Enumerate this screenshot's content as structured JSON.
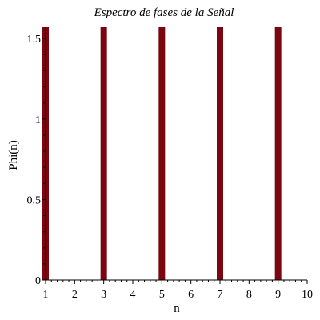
{
  "chart_data": {
    "type": "bar",
    "title": "Espectro de fases de la Señal",
    "xlabel": "n",
    "ylabel": "Phi(n)",
    "x": [
      1,
      3,
      5,
      7,
      9
    ],
    "values": [
      1.5708,
      1.5708,
      1.5708,
      1.5708,
      1.5708
    ],
    "xlim": [
      1,
      10
    ],
    "ylim": [
      0,
      1.5708
    ],
    "xticks": [
      1,
      2,
      3,
      4,
      5,
      6,
      7,
      8,
      9,
      10
    ],
    "xtick_labels": [
      "1",
      "2",
      "3",
      "4",
      "5",
      "6",
      "7",
      "8",
      "9",
      "10"
    ],
    "yticks": [
      0,
      0.5,
      1,
      1.5
    ],
    "ytick_labels": [
      "0",
      "0.5",
      "1",
      "1.5"
    ],
    "grid": false,
    "bar_color": "#7b0612"
  }
}
